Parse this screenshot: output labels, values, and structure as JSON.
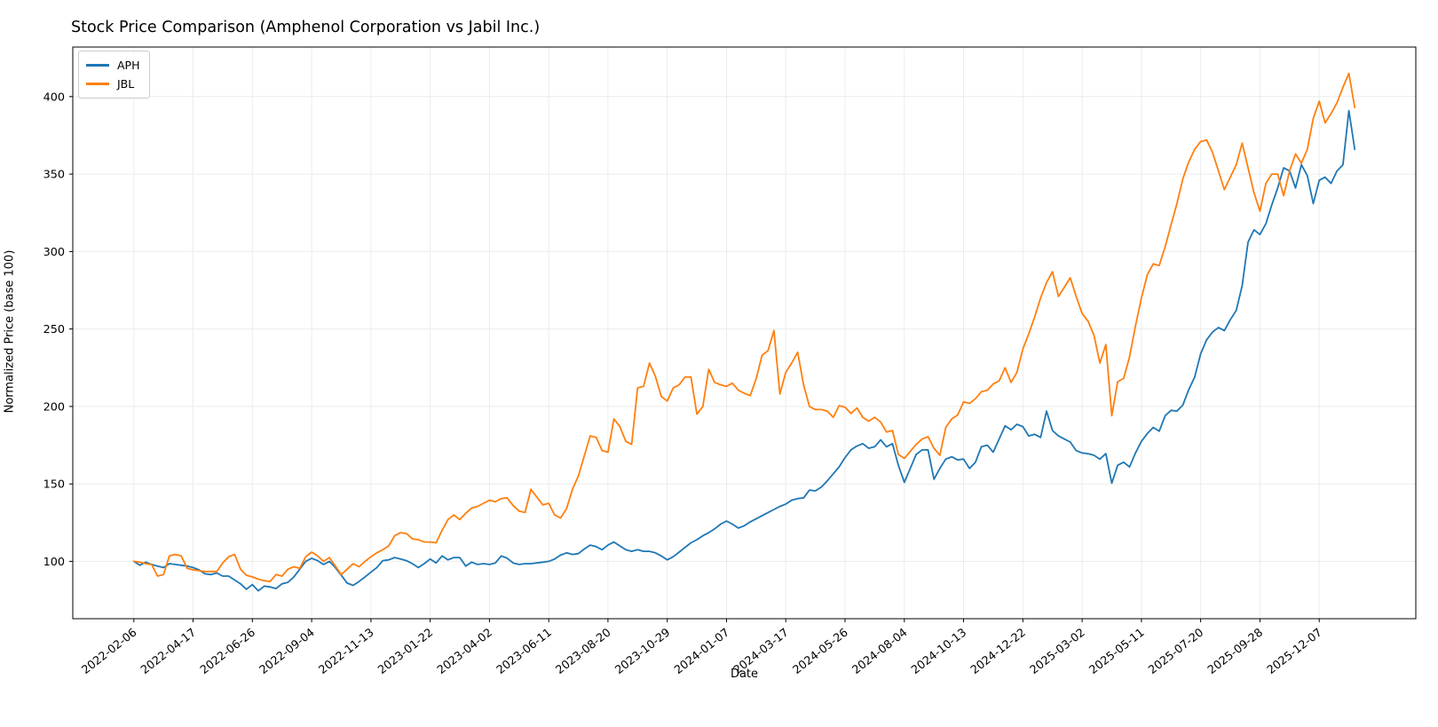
{
  "figure": {
    "title": "Stock Price Comparison (Amphenol Corporation vs Jabil Inc.)",
    "xlabel": "Date",
    "ylabel": "Normalized Price (base 100)"
  },
  "legend": {
    "entries": [
      {
        "label": "APH",
        "color": "#1f77b4"
      },
      {
        "label": "JBL",
        "color": "#ff7f0e"
      }
    ]
  },
  "chart_data": {
    "type": "line",
    "title": "Stock Price Comparison (Amphenol Corporation vs Jabil Inc.)",
    "xlabel": "Date",
    "ylabel": "Normalized Price (base 100)",
    "frequency": "weekly",
    "x_start_date": "2022-02-06",
    "grid": true,
    "legend_position": "upper left",
    "background": "#ffffff",
    "grid_color": "#ececec",
    "spine_color": "#000000",
    "ylim": [
      63,
      432
    ],
    "xlim_weeks": [
      -10.3,
      216.3
    ],
    "y_ticks": [
      100,
      150,
      200,
      250,
      300,
      350,
      400
    ],
    "x_tick_weeks": [
      0,
      10,
      20,
      30,
      40,
      50,
      60,
      70,
      80,
      90,
      100,
      110,
      120,
      130,
      140,
      150,
      160,
      170,
      180,
      190,
      200
    ],
    "x_tick_labels": [
      "2022-02-06",
      "2022-04-17",
      "2022-06-26",
      "2022-09-04",
      "2022-11-13",
      "2023-01-22",
      "2023-04-02",
      "2023-06-11",
      "2023-08-20",
      "2023-10-29",
      "2024-01-07",
      "2024-03-17",
      "2024-05-26",
      "2024-08-04",
      "2024-10-13",
      "2024-12-22",
      "2025-03-02",
      "2025-05-11",
      "2025-07-20",
      "2025-09-28",
      "2025-12-07"
    ],
    "series": [
      {
        "name": "APH",
        "color": "#1f77b4",
        "values": [
          100,
          97.5,
          99.5,
          98,
          97,
          96,
          98.5,
          98,
          97.5,
          97,
          96,
          94.5,
          92,
          91.5,
          92.5,
          90.5,
          90.5,
          88,
          85.5,
          82,
          85,
          81,
          84,
          83.5,
          82.5,
          85.5,
          86.5,
          90,
          95,
          100,
          102,
          100.5,
          98,
          100,
          96,
          91,
          86,
          84.5,
          87,
          90,
          93,
          96,
          100.5,
          101,
          102.5,
          101.5,
          100.5,
          98.5,
          96,
          98.5,
          101.5,
          99,
          103.5,
          101,
          102.5,
          102.5,
          97,
          99.5,
          98,
          98.5,
          98,
          99,
          103.5,
          102,
          99,
          98,
          98.5,
          98.5,
          99,
          99.5,
          100,
          101.5,
          104,
          105.5,
          104.5,
          105,
          108,
          110.5,
          109.5,
          107.5,
          110.5,
          112.5,
          110,
          107.5,
          106.5,
          107.5,
          106.5,
          106.5,
          105.5,
          103.5,
          101,
          103,
          106,
          109,
          112,
          114,
          116.5,
          118.5,
          121,
          124,
          126,
          124,
          121.5,
          123,
          125.5,
          127.5,
          129.5,
          131.5,
          133.5,
          135.5,
          137,
          139.5,
          140.5,
          141,
          146,
          145.5,
          148,
          152,
          156.5,
          161,
          167,
          172,
          174.5,
          176,
          173,
          174,
          178.5,
          174,
          176,
          162,
          151,
          160,
          169,
          172,
          172,
          153,
          160,
          166,
          167.5,
          165.5,
          166,
          160,
          164,
          174,
          175,
          170.5,
          179,
          187.5,
          185,
          188.5,
          187,
          181,
          182,
          180,
          197,
          184.5,
          181,
          179,
          177,
          171.5,
          170,
          169.5,
          168.5,
          166,
          169.5,
          150.5,
          162,
          164,
          161,
          170,
          177.5,
          182.5,
          186.5,
          184,
          194,
          197.5,
          197,
          201,
          211,
          219,
          234,
          243,
          248,
          251,
          249,
          256,
          262,
          278,
          306,
          314,
          311,
          318,
          330,
          341,
          354,
          352,
          341,
          356,
          349,
          331,
          346,
          348,
          344,
          352,
          356,
          391,
          366
        ]
      },
      {
        "name": "JBL",
        "color": "#ff7f0e",
        "values": [
          100,
          99.5,
          98.5,
          98,
          90.5,
          91.5,
          103.5,
          104.5,
          103.5,
          95.5,
          94.5,
          94,
          93.5,
          93.5,
          93.5,
          99,
          103,
          104.5,
          95,
          91,
          90,
          88.5,
          87.5,
          87,
          91.5,
          90.5,
          95,
          96.5,
          95.5,
          103,
          106,
          103.5,
          100,
          102.5,
          97,
          91.5,
          95,
          98.5,
          96.5,
          100,
          103,
          105.5,
          107.5,
          110,
          116.5,
          118.5,
          118,
          114.5,
          114,
          112.5,
          112.5,
          112,
          120,
          127,
          130,
          127,
          131,
          134.5,
          135.5,
          137.5,
          139.5,
          138.5,
          140.5,
          141,
          136,
          132.5,
          131.5,
          146.5,
          141.5,
          136.5,
          137.5,
          130,
          128,
          134,
          146.5,
          155,
          168,
          181,
          180,
          171.5,
          170.5,
          192,
          187,
          177.5,
          175.5,
          212,
          213,
          228,
          219.5,
          206.5,
          203.5,
          212,
          214,
          219,
          219,
          195,
          200,
          224,
          215.5,
          214,
          213,
          215,
          210.5,
          208.5,
          207,
          218,
          233,
          236,
          249,
          208,
          222,
          228,
          235,
          214,
          200,
          198,
          198,
          197,
          193,
          200.5,
          199.5,
          195.5,
          199,
          193,
          190.5,
          193,
          190,
          183.5,
          184.5,
          169,
          166.5,
          171,
          175.5,
          179,
          180.5,
          173,
          168.5,
          186.5,
          192,
          194.5,
          203,
          202,
          205,
          209.5,
          210.5,
          214.5,
          216.5,
          225,
          215.5,
          222,
          237,
          247,
          258,
          270,
          280,
          287,
          271,
          277,
          283,
          271,
          260,
          255,
          246,
          228,
          240,
          194,
          216,
          218,
          232,
          252,
          270,
          285,
          292,
          291,
          303,
          317,
          331,
          347,
          358,
          366,
          371,
          372,
          364,
          352,
          340,
          348,
          356,
          370,
          354,
          338,
          326,
          344,
          350,
          350,
          336,
          352,
          363,
          357,
          366,
          386,
          397,
          383,
          389,
          396,
          406,
          415,
          393
        ]
      }
    ]
  }
}
